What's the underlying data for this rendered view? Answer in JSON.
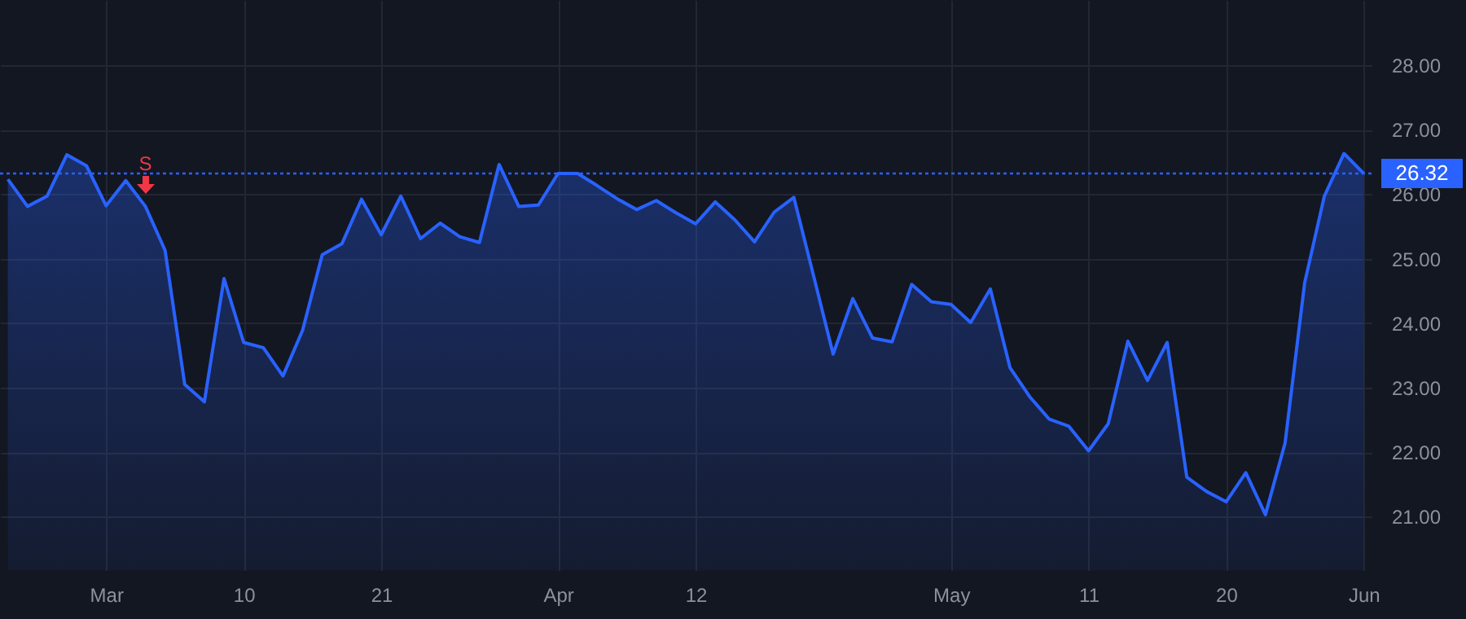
{
  "chart_data": {
    "type": "area",
    "color": "#2962ff",
    "categories": [
      null,
      null,
      null,
      null,
      null,
      "Mar",
      null,
      null,
      null,
      null,
      null,
      null,
      "10",
      null,
      null,
      null,
      null,
      null,
      null,
      "21",
      null,
      null,
      null,
      null,
      null,
      null,
      null,
      null,
      "Apr",
      null,
      null,
      null,
      null,
      null,
      null,
      "12",
      null,
      null,
      null,
      null,
      null,
      null,
      null,
      null,
      null,
      null,
      null,
      null,
      "May",
      null,
      null,
      null,
      null,
      null,
      null,
      "11",
      null,
      null,
      null,
      null,
      null,
      null,
      "20",
      null,
      null,
      null,
      null,
      null,
      null,
      "Jun"
    ],
    "values": [
      26.23,
      25.81,
      25.97,
      26.61,
      26.44,
      25.82,
      26.21,
      25.81,
      25.13,
      23.05,
      22.78,
      24.69,
      23.7,
      23.62,
      23.18,
      23.89,
      25.06,
      25.23,
      25.92,
      25.37,
      25.97,
      25.31,
      25.55,
      25.34,
      25.25,
      26.46,
      25.81,
      25.83,
      26.32,
      26.32,
      26.13,
      25.93,
      25.76,
      25.9,
      25.71,
      25.54,
      25.88,
      25.6,
      25.26,
      25.72,
      25.95,
      24.74,
      23.52,
      24.38,
      23.77,
      23.71,
      24.6,
      24.33,
      24.29,
      24.01,
      24.53,
      23.31,
      22.86,
      22.51,
      22.4,
      22.02,
      22.44,
      23.72,
      23.11,
      23.7,
      21.61,
      21.39,
      21.23,
      21.68,
      21.03,
      22.14,
      24.63,
      25.97,
      26.63,
      26.32
    ],
    "ylim": [
      20.17,
      29.01
    ],
    "yticks": [
      {
        "value": 21,
        "label": "21.00"
      },
      {
        "value": 22,
        "label": "22.00"
      },
      {
        "value": 23,
        "label": "23.00"
      },
      {
        "value": 24,
        "label": "24.00"
      },
      {
        "value": 25,
        "label": "25.00"
      },
      {
        "value": 26,
        "label": "26.00"
      },
      {
        "value": 27,
        "label": "27.00"
      },
      {
        "value": 28,
        "label": "28.00"
      }
    ],
    "grid": true,
    "ref_lines": [
      {
        "axis": "y",
        "value": 26.32,
        "label": "26.32",
        "color": "#2962ff",
        "line_style": "dotted"
      }
    ],
    "annotations": [
      {
        "text": "S",
        "y": 26.4
      }
    ]
  }
}
